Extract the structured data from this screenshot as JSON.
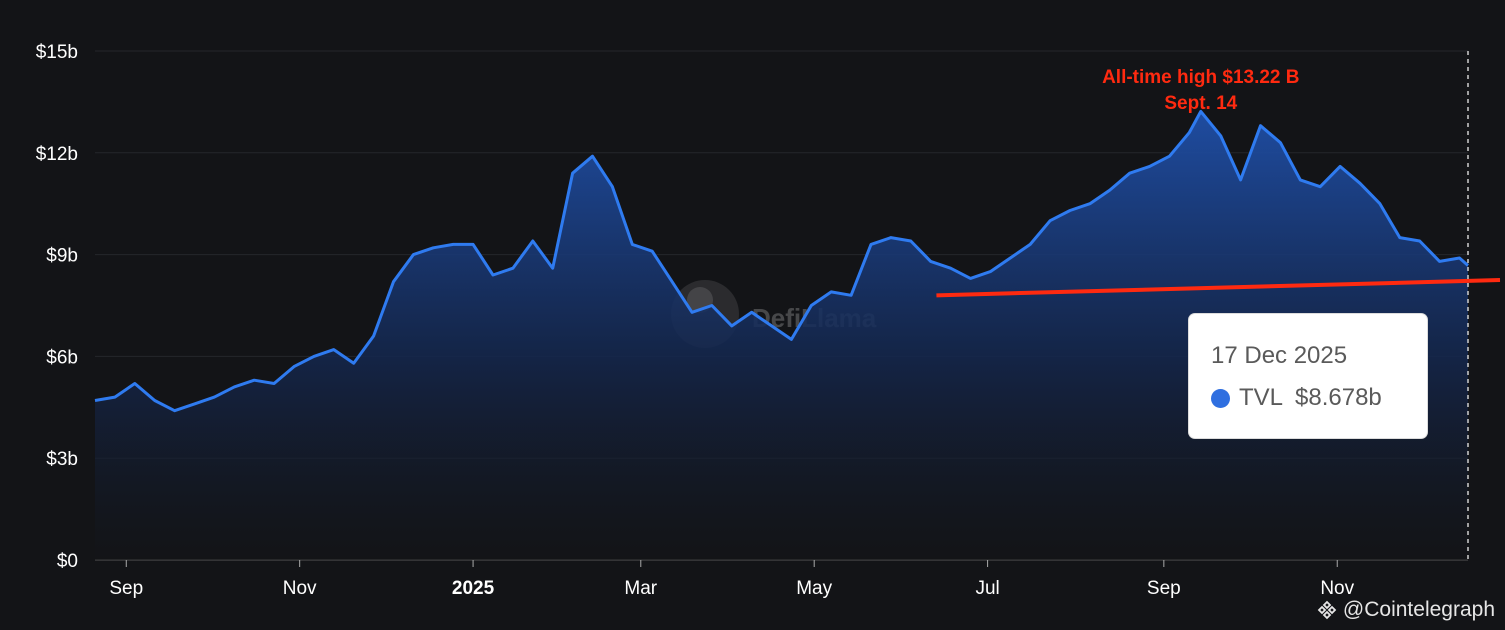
{
  "chart_data": {
    "type": "area",
    "ylim": [
      0,
      15
    ],
    "y_ticks": [
      "$0",
      "$3b",
      "$6b",
      "$9b",
      "$12b",
      "$15b"
    ],
    "y_tick_values": [
      0,
      3,
      6,
      9,
      12,
      15
    ],
    "x_ticks": [
      {
        "label": "Sep",
        "date": "2024-09-01"
      },
      {
        "label": "Nov",
        "date": "2024-11-01"
      },
      {
        "label": "2025",
        "date": "2025-01-01",
        "bold": true
      },
      {
        "label": "Mar",
        "date": "2025-03-01"
      },
      {
        "label": "May",
        "date": "2025-05-01"
      },
      {
        "label": "Jul",
        "date": "2025-07-01"
      },
      {
        "label": "Sep",
        "date": "2025-09-01"
      },
      {
        "label": "Nov",
        "date": "2025-11-01"
      }
    ],
    "xlim": [
      "2024-08-21",
      "2025-12-17"
    ],
    "grid": true,
    "series": [
      {
        "name": "TVL",
        "color": "#2f7bf0",
        "unit": "billion USD",
        "points": [
          [
            "2024-08-21",
            4.7
          ],
          [
            "2024-08-28",
            4.8
          ],
          [
            "2024-09-04",
            5.2
          ],
          [
            "2024-09-11",
            4.7
          ],
          [
            "2024-09-18",
            4.4
          ],
          [
            "2024-09-25",
            4.6
          ],
          [
            "2024-10-02",
            4.8
          ],
          [
            "2024-10-09",
            5.1
          ],
          [
            "2024-10-16",
            5.3
          ],
          [
            "2024-10-23",
            5.2
          ],
          [
            "2024-10-30",
            5.7
          ],
          [
            "2024-11-06",
            6.0
          ],
          [
            "2024-11-13",
            6.2
          ],
          [
            "2024-11-20",
            5.8
          ],
          [
            "2024-11-27",
            6.6
          ],
          [
            "2024-12-04",
            8.2
          ],
          [
            "2024-12-11",
            9.0
          ],
          [
            "2024-12-18",
            9.2
          ],
          [
            "2024-12-25",
            9.3
          ],
          [
            "2025-01-01",
            9.3
          ],
          [
            "2025-01-08",
            8.4
          ],
          [
            "2025-01-15",
            8.6
          ],
          [
            "2025-01-22",
            9.4
          ],
          [
            "2025-01-29",
            8.6
          ],
          [
            "2025-02-05",
            11.4
          ],
          [
            "2025-02-12",
            11.9
          ],
          [
            "2025-02-19",
            11.0
          ],
          [
            "2025-02-26",
            9.3
          ],
          [
            "2025-03-05",
            9.1
          ],
          [
            "2025-03-12",
            8.2
          ],
          [
            "2025-03-19",
            7.3
          ],
          [
            "2025-03-26",
            7.5
          ],
          [
            "2025-04-02",
            6.9
          ],
          [
            "2025-04-09",
            7.3
          ],
          [
            "2025-04-16",
            6.9
          ],
          [
            "2025-04-23",
            6.5
          ],
          [
            "2025-04-30",
            7.5
          ],
          [
            "2025-05-07",
            7.9
          ],
          [
            "2025-05-14",
            7.8
          ],
          [
            "2025-05-21",
            9.3
          ],
          [
            "2025-05-28",
            9.5
          ],
          [
            "2025-06-04",
            9.4
          ],
          [
            "2025-06-11",
            8.8
          ],
          [
            "2025-06-18",
            8.6
          ],
          [
            "2025-06-25",
            8.3
          ],
          [
            "2025-07-02",
            8.5
          ],
          [
            "2025-07-09",
            8.9
          ],
          [
            "2025-07-16",
            9.3
          ],
          [
            "2025-07-23",
            10.0
          ],
          [
            "2025-07-30",
            10.3
          ],
          [
            "2025-08-06",
            10.5
          ],
          [
            "2025-08-13",
            10.9
          ],
          [
            "2025-08-20",
            11.4
          ],
          [
            "2025-08-27",
            11.6
          ],
          [
            "2025-09-03",
            11.9
          ],
          [
            "2025-09-10",
            12.6
          ],
          [
            "2025-09-14",
            13.22
          ],
          [
            "2025-09-21",
            12.5
          ],
          [
            "2025-09-28",
            11.2
          ],
          [
            "2025-10-05",
            12.8
          ],
          [
            "2025-10-12",
            12.3
          ],
          [
            "2025-10-19",
            11.2
          ],
          [
            "2025-10-26",
            11.0
          ],
          [
            "2025-11-02",
            11.6
          ],
          [
            "2025-11-09",
            11.1
          ],
          [
            "2025-11-16",
            10.5
          ],
          [
            "2025-11-23",
            9.5
          ],
          [
            "2025-11-30",
            9.4
          ],
          [
            "2025-12-07",
            8.8
          ],
          [
            "2025-12-14",
            8.9
          ],
          [
            "2025-12-17",
            8.678
          ]
        ]
      }
    ],
    "support_line": {
      "color": "#ff2a10",
      "from": [
        "2025-06-13",
        7.8
      ],
      "to": [
        "2025-12-17",
        8.25
      ]
    },
    "annotation": {
      "line1": "All-time high $13.22 B",
      "line2": "Sept. 14",
      "date": "2025-09-14",
      "color": "#ff2a10"
    },
    "watermark": "DefiLlama"
  },
  "tooltip": {
    "date": "17 Dec 2025",
    "series": "TVL",
    "value": "$8.678b",
    "dot_color": "#2f6fe0"
  },
  "credit": {
    "text": "Cointelegraph",
    "prefix": "@",
    "logo_icon": "binance-diamond-icon"
  }
}
